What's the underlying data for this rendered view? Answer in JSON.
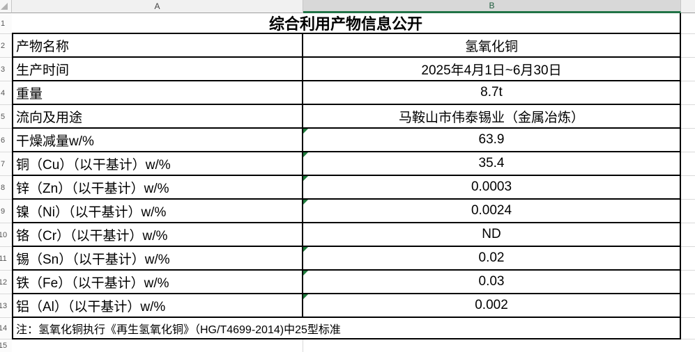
{
  "sheet": {
    "column_headers": {
      "a": "A",
      "b": "B"
    },
    "row_numbers": [
      "1",
      "2",
      "3",
      "4",
      "5",
      "6",
      "7",
      "8",
      "9",
      "10",
      "11",
      "12",
      "13",
      "14",
      "15"
    ],
    "title": "综合利用产物信息公开",
    "rows": [
      {
        "label": "产物名称",
        "value": "氢氧化铜",
        "flag": false
      },
      {
        "label": "生产时间",
        "value": "2025年4月1日~6月30日",
        "flag": false
      },
      {
        "label": "重量",
        "value": "8.7t",
        "flag": false
      },
      {
        "label": "流向及用途",
        "value": "马鞍山市伟泰锡业（金属冶炼）",
        "flag": false
      },
      {
        "label": "干燥减量w/%",
        "value": "63.9",
        "flag": true
      },
      {
        "label": "铜（Cu）（以干基计）w/%",
        "value": "35.4",
        "flag": true
      },
      {
        "label": "锌（Zn）（以干基计）w/%",
        "value": "0.0003",
        "flag": true
      },
      {
        "label": "镍（Ni）（以干基计）w/%",
        "value": "0.0024",
        "flag": true
      },
      {
        "label": "铬（Cr）（以干基计）w/%",
        "value": "ND",
        "flag": false
      },
      {
        "label": "锡（Sn）（以干基计）w/%",
        "value": "0.02",
        "flag": true
      },
      {
        "label": "铁（Fe）（以干基计）w/%",
        "value": "0.03",
        "flag": true
      },
      {
        "label": "铝（Al）（以干基计）w/%",
        "value": "0.002",
        "flag": true
      }
    ],
    "note": "注：氢氧化铜执行《再生氢氧化铜》（HG/T4699-2014)中25型标准",
    "colors": {
      "selection_green": "#217346",
      "flag_indicator_green": "#1f7a3c",
      "table_border": "#000000",
      "gridline": "#d9d9d9"
    }
  }
}
